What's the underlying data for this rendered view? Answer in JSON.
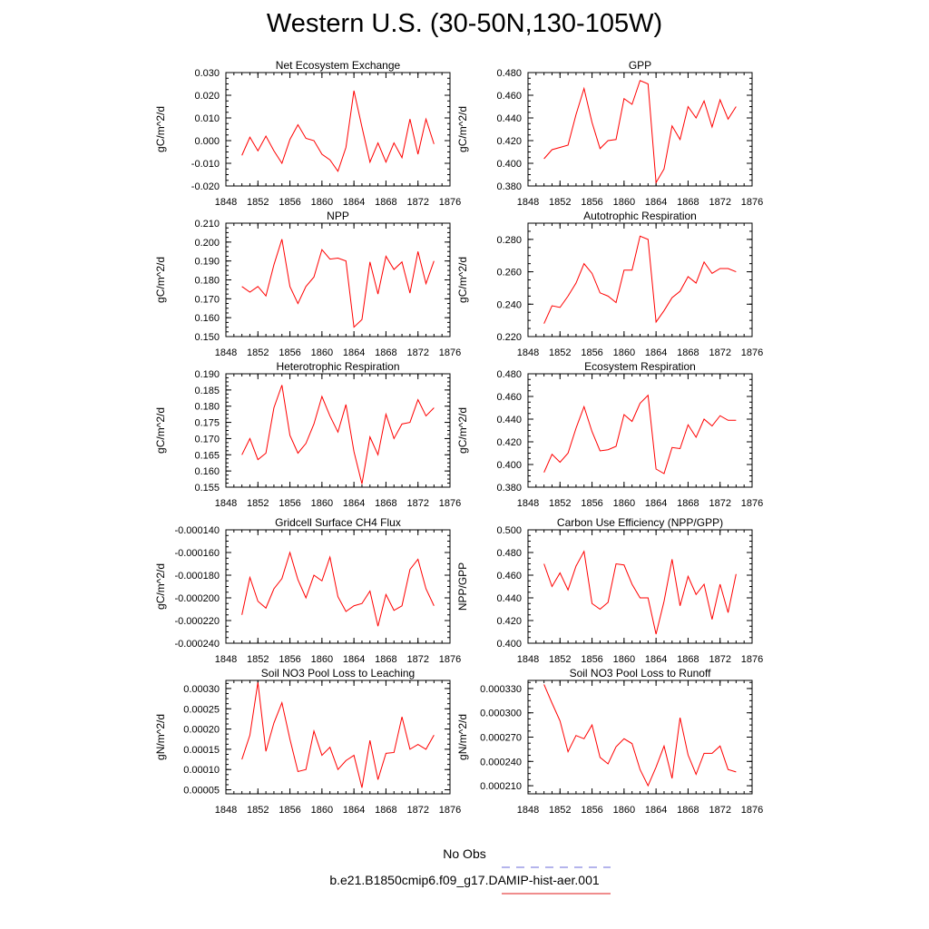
{
  "page": {
    "title": "Western U.S. (30-50N,130-105W)"
  },
  "legend": {
    "items": [
      {
        "label": "No Obs",
        "color": "#6a6ad8",
        "dash": true
      },
      {
        "label": "b.e21.B1850cmip6.f09_g17.DAMIP-hist-aer.001",
        "color": "#e21b1b",
        "dash": false
      }
    ]
  },
  "colors": {
    "series": "#ff0000",
    "axis": "#000000"
  },
  "chart_data": [
    {
      "type": "line",
      "title": "Net Ecosystem Exchange",
      "ylabel": "gC/m^2/d",
      "xlim": [
        1848,
        1876
      ],
      "xticks": [
        1848,
        1852,
        1856,
        1860,
        1864,
        1868,
        1872,
        1876
      ],
      "ylim": [
        -0.02,
        0.03
      ],
      "yticks": [
        -0.02,
        -0.01,
        0.0,
        0.01,
        0.02,
        0.03
      ],
      "ytick_labels": [
        "-0.020",
        "-0.010",
        "0.000",
        "0.010",
        "0.020",
        "0.030"
      ],
      "x": [
        1850,
        1851,
        1852,
        1853,
        1854,
        1855,
        1856,
        1857,
        1858,
        1859,
        1860,
        1861,
        1862,
        1863,
        1864,
        1865,
        1866,
        1867,
        1868,
        1869,
        1870,
        1871,
        1872,
        1873,
        1874
      ],
      "values": [
        -0.0065,
        0.0015,
        -0.0045,
        0.002,
        -0.0045,
        -0.01,
        0.0005,
        0.007,
        0.001,
        0.0,
        -0.006,
        -0.0085,
        -0.0135,
        -0.003,
        0.022,
        0.006,
        -0.0095,
        -0.001,
        -0.0095,
        -0.001,
        -0.0075,
        0.0095,
        -0.006,
        0.0095,
        -0.0015
      ]
    },
    {
      "type": "line",
      "title": "GPP",
      "ylabel": "gC/m^2/d",
      "xlim": [
        1848,
        1876
      ],
      "xticks": [
        1848,
        1852,
        1856,
        1860,
        1864,
        1868,
        1872,
        1876
      ],
      "ylim": [
        0.38,
        0.48
      ],
      "yticks": [
        0.38,
        0.4,
        0.42,
        0.44,
        0.46,
        0.48
      ],
      "ytick_labels": [
        "0.380",
        "0.400",
        "0.420",
        "0.440",
        "0.460",
        "0.480"
      ],
      "x": [
        1850,
        1851,
        1852,
        1853,
        1854,
        1855,
        1856,
        1857,
        1858,
        1859,
        1860,
        1861,
        1862,
        1863,
        1864,
        1865,
        1866,
        1867,
        1868,
        1869,
        1870,
        1871,
        1872,
        1873,
        1874
      ],
      "values": [
        0.404,
        0.412,
        0.414,
        0.416,
        0.443,
        0.466,
        0.436,
        0.413,
        0.42,
        0.421,
        0.457,
        0.452,
        0.473,
        0.47,
        0.383,
        0.395,
        0.433,
        0.421,
        0.45,
        0.44,
        0.455,
        0.432,
        0.456,
        0.439,
        0.45
      ]
    },
    {
      "type": "line",
      "title": "NPP",
      "ylabel": "gC/m^2/d",
      "xlim": [
        1848,
        1876
      ],
      "xticks": [
        1848,
        1852,
        1856,
        1860,
        1864,
        1868,
        1872,
        1876
      ],
      "ylim": [
        0.15,
        0.21
      ],
      "yticks": [
        0.15,
        0.16,
        0.17,
        0.18,
        0.19,
        0.2,
        0.21
      ],
      "ytick_labels": [
        "0.150",
        "0.160",
        "0.170",
        "0.180",
        "0.190",
        "0.200",
        "0.210"
      ],
      "x": [
        1850,
        1851,
        1852,
        1853,
        1854,
        1855,
        1856,
        1857,
        1858,
        1859,
        1860,
        1861,
        1862,
        1863,
        1864,
        1865,
        1866,
        1867,
        1868,
        1869,
        1870,
        1871,
        1872,
        1873,
        1874
      ],
      "values": [
        0.1765,
        0.1735,
        0.1765,
        0.1715,
        0.188,
        0.2015,
        0.1765,
        0.1675,
        0.1765,
        0.1815,
        0.196,
        0.191,
        0.1915,
        0.19,
        0.155,
        0.159,
        0.1895,
        0.1725,
        0.1925,
        0.1855,
        0.1895,
        0.173,
        0.195,
        0.178,
        0.19
      ]
    },
    {
      "type": "line",
      "title": "Autotrophic Respiration",
      "ylabel": "gC/m^2/d",
      "xlim": [
        1848,
        1876
      ],
      "xticks": [
        1848,
        1852,
        1856,
        1860,
        1864,
        1868,
        1872,
        1876
      ],
      "ylim": [
        0.22,
        0.29
      ],
      "yticks": [
        0.22,
        0.24,
        0.26,
        0.28
      ],
      "ytick_labels": [
        "0.220",
        "0.240",
        "0.260",
        "0.280"
      ],
      "x": [
        1850,
        1851,
        1852,
        1853,
        1854,
        1855,
        1856,
        1857,
        1858,
        1859,
        1860,
        1861,
        1862,
        1863,
        1864,
        1865,
        1866,
        1867,
        1868,
        1869,
        1870,
        1871,
        1872,
        1873,
        1874
      ],
      "values": [
        0.228,
        0.239,
        0.238,
        0.245,
        0.253,
        0.265,
        0.259,
        0.247,
        0.245,
        0.241,
        0.261,
        0.261,
        0.282,
        0.28,
        0.229,
        0.236,
        0.244,
        0.248,
        0.257,
        0.253,
        0.266,
        0.259,
        0.262,
        0.262,
        0.26
      ]
    },
    {
      "type": "line",
      "title": "Heterotrophic Respiration",
      "ylabel": "gC/m^2/d",
      "xlim": [
        1848,
        1876
      ],
      "xticks": [
        1848,
        1852,
        1856,
        1860,
        1864,
        1868,
        1872,
        1876
      ],
      "ylim": [
        0.155,
        0.19
      ],
      "yticks": [
        0.155,
        0.16,
        0.165,
        0.17,
        0.175,
        0.18,
        0.185,
        0.19
      ],
      "ytick_labels": [
        "0.155",
        "0.160",
        "0.165",
        "0.170",
        "0.175",
        "0.180",
        "0.185",
        "0.190"
      ],
      "x": [
        1850,
        1851,
        1852,
        1853,
        1854,
        1855,
        1856,
        1857,
        1858,
        1859,
        1860,
        1861,
        1862,
        1863,
        1864,
        1865,
        1866,
        1867,
        1868,
        1869,
        1870,
        1871,
        1872,
        1873,
        1874
      ],
      "values": [
        0.165,
        0.17,
        0.1635,
        0.1655,
        0.1795,
        0.1865,
        0.171,
        0.1655,
        0.1685,
        0.1745,
        0.183,
        0.177,
        0.172,
        0.1805,
        0.166,
        0.156,
        0.1705,
        0.165,
        0.1775,
        0.17,
        0.1745,
        0.175,
        0.182,
        0.177,
        0.1795
      ]
    },
    {
      "type": "line",
      "title": "Ecosystem Respiration",
      "ylabel": "gC/m^2/d",
      "xlim": [
        1848,
        1876
      ],
      "xticks": [
        1848,
        1852,
        1856,
        1860,
        1864,
        1868,
        1872,
        1876
      ],
      "ylim": [
        0.38,
        0.48
      ],
      "yticks": [
        0.38,
        0.4,
        0.42,
        0.44,
        0.46,
        0.48
      ],
      "ytick_labels": [
        "0.380",
        "0.400",
        "0.420",
        "0.440",
        "0.460",
        "0.480"
      ],
      "x": [
        1850,
        1851,
        1852,
        1853,
        1854,
        1855,
        1856,
        1857,
        1858,
        1859,
        1860,
        1861,
        1862,
        1863,
        1864,
        1865,
        1866,
        1867,
        1868,
        1869,
        1870,
        1871,
        1872,
        1873,
        1874
      ],
      "values": [
        0.393,
        0.409,
        0.402,
        0.41,
        0.432,
        0.451,
        0.429,
        0.412,
        0.413,
        0.416,
        0.444,
        0.438,
        0.454,
        0.461,
        0.396,
        0.392,
        0.415,
        0.414,
        0.435,
        0.424,
        0.44,
        0.434,
        0.443,
        0.439,
        0.439
      ]
    },
    {
      "type": "line",
      "title": "Gridcell Surface CH4 Flux",
      "ylabel": "gC/m^2/d",
      "xlim": [
        1848,
        1876
      ],
      "xticks": [
        1848,
        1852,
        1856,
        1860,
        1864,
        1868,
        1872,
        1876
      ],
      "ylim": [
        -0.00024,
        -0.00014
      ],
      "yticks": [
        -0.00024,
        -0.00022,
        -0.0002,
        -0.00018,
        -0.00016,
        -0.00014
      ],
      "ytick_labels": [
        "-0.000240",
        "-0.000220",
        "-0.000200",
        "-0.000180",
        "-0.000160",
        "-0.000140"
      ],
      "x": [
        1850,
        1851,
        1852,
        1853,
        1854,
        1855,
        1856,
        1857,
        1858,
        1859,
        1860,
        1861,
        1862,
        1863,
        1864,
        1865,
        1866,
        1867,
        1868,
        1869,
        1870,
        1871,
        1872,
        1873,
        1874
      ],
      "values": [
        -0.000215,
        -0.000182,
        -0.000203,
        -0.000209,
        -0.000192,
        -0.000183,
        -0.00016,
        -0.000184,
        -0.0002,
        -0.00018,
        -0.000185,
        -0.000164,
        -0.000199,
        -0.000212,
        -0.000207,
        -0.000205,
        -0.000194,
        -0.000225,
        -0.000197,
        -0.000211,
        -0.000207,
        -0.000175,
        -0.000166,
        -0.000192,
        -0.000207
      ]
    },
    {
      "type": "line",
      "title": "Carbon Use Efficiency (NPP/GPP)",
      "ylabel": "NPP/GPP",
      "xlim": [
        1848,
        1876
      ],
      "xticks": [
        1848,
        1852,
        1856,
        1860,
        1864,
        1868,
        1872,
        1876
      ],
      "ylim": [
        0.4,
        0.5
      ],
      "yticks": [
        0.4,
        0.42,
        0.44,
        0.46,
        0.48,
        0.5
      ],
      "ytick_labels": [
        "0.400",
        "0.420",
        "0.440",
        "0.460",
        "0.480",
        "0.500"
      ],
      "x": [
        1850,
        1851,
        1852,
        1853,
        1854,
        1855,
        1856,
        1857,
        1858,
        1859,
        1860,
        1861,
        1862,
        1863,
        1864,
        1865,
        1866,
        1867,
        1868,
        1869,
        1870,
        1871,
        1872,
        1873,
        1874
      ],
      "values": [
        0.47,
        0.45,
        0.462,
        0.447,
        0.468,
        0.481,
        0.435,
        0.43,
        0.436,
        0.47,
        0.469,
        0.452,
        0.44,
        0.44,
        0.408,
        0.437,
        0.474,
        0.433,
        0.459,
        0.443,
        0.452,
        0.421,
        0.452,
        0.427,
        0.461
      ]
    },
    {
      "type": "line",
      "title": "Soil NO3 Pool Loss to Leaching",
      "ylabel": "gN/m^2/d",
      "xlim": [
        1848,
        1876
      ],
      "xticks": [
        1848,
        1852,
        1856,
        1860,
        1864,
        1868,
        1872,
        1876
      ],
      "ylim": [
        4e-05,
        0.00032
      ],
      "yticks": [
        5e-05,
        0.0001,
        0.00015,
        0.0002,
        0.00025,
        0.0003
      ],
      "ytick_labels": [
        "0.00005",
        "0.00010",
        "0.00015",
        "0.00020",
        "0.00025",
        "0.00030"
      ],
      "x": [
        1850,
        1851,
        1852,
        1853,
        1854,
        1855,
        1856,
        1857,
        1858,
        1859,
        1860,
        1861,
        1862,
        1863,
        1864,
        1865,
        1866,
        1867,
        1868,
        1869,
        1870,
        1871,
        1872,
        1873,
        1874
      ],
      "values": [
        0.000125,
        0.000185,
        0.000315,
        0.000145,
        0.000215,
        0.000265,
        0.000175,
        9.5e-05,
        0.0001,
        0.000195,
        0.000135,
        0.000155,
        0.0001,
        0.000122,
        0.000135,
        5.5e-05,
        0.000172,
        7.5e-05,
        0.00014,
        0.000142,
        0.00023,
        0.00015,
        0.000162,
        0.00015,
        0.000185
      ]
    },
    {
      "type": "line",
      "title": "Soil NO3 Pool Loss to Runoff",
      "ylabel": "gN/m^2/d",
      "xlim": [
        1848,
        1876
      ],
      "xticks": [
        1848,
        1852,
        1856,
        1860,
        1864,
        1868,
        1872,
        1876
      ],
      "ylim": [
        0.0002,
        0.00034
      ],
      "yticks": [
        0.00021,
        0.00024,
        0.00027,
        0.0003,
        0.00033
      ],
      "ytick_labels": [
        "0.000210",
        "0.000240",
        "0.000270",
        "0.000300",
        "0.000330"
      ],
      "x": [
        1850,
        1851,
        1852,
        1853,
        1854,
        1855,
        1856,
        1857,
        1858,
        1859,
        1860,
        1861,
        1862,
        1863,
        1864,
        1865,
        1866,
        1867,
        1868,
        1869,
        1870,
        1871,
        1872,
        1873,
        1874
      ],
      "values": [
        0.000335,
        0.000312,
        0.00029,
        0.000252,
        0.000272,
        0.000268,
        0.000285,
        0.000245,
        0.000237,
        0.000258,
        0.000268,
        0.000262,
        0.00023,
        0.00021,
        0.000233,
        0.000259,
        0.000219,
        0.000294,
        0.000248,
        0.000224,
        0.00025,
        0.00025,
        0.000259,
        0.00023,
        0.000227
      ]
    }
  ]
}
